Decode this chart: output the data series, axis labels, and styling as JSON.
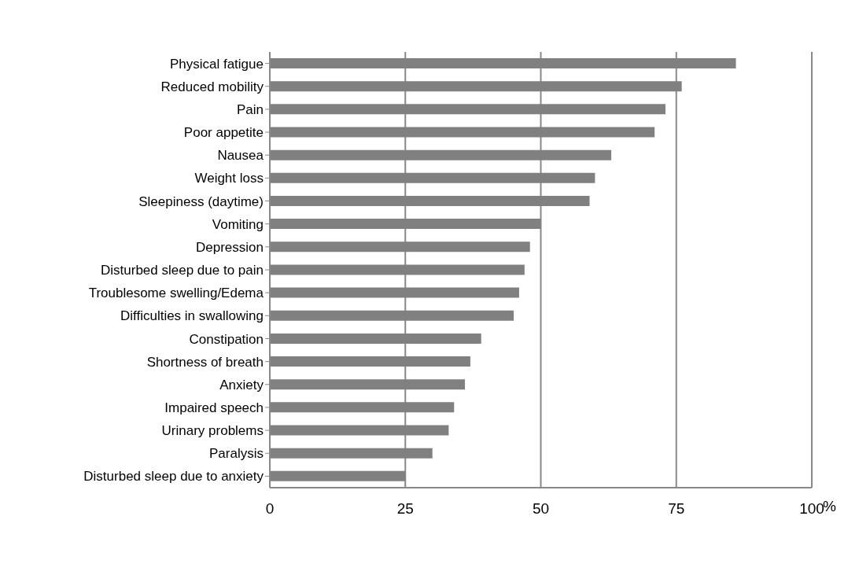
{
  "chart_data": {
    "type": "bar",
    "orientation": "horizontal",
    "categories": [
      "Physical fatigue",
      "Reduced mobility",
      "Pain",
      "Poor appetite",
      "Nausea",
      "Weight loss",
      "Sleepiness (daytime)",
      "Vomiting",
      "Depression",
      "Disturbed sleep due to pain",
      "Troublesome swelling/Edema",
      "Difficulties in swallowing",
      "Constipation",
      "Shortness of breath",
      "Anxiety",
      "Impaired speech",
      "Urinary problems",
      "Paralysis",
      "Disturbed sleep due to anxiety"
    ],
    "values": [
      86,
      76,
      73,
      71,
      63,
      60,
      59,
      50,
      48,
      47,
      46,
      45,
      39,
      37,
      36,
      34,
      33,
      30,
      25
    ],
    "color": "#808080",
    "xlabel": "%",
    "xlim": [
      0,
      100
    ],
    "xticks": [
      0,
      25,
      50,
      75,
      100
    ],
    "grid": "x"
  }
}
